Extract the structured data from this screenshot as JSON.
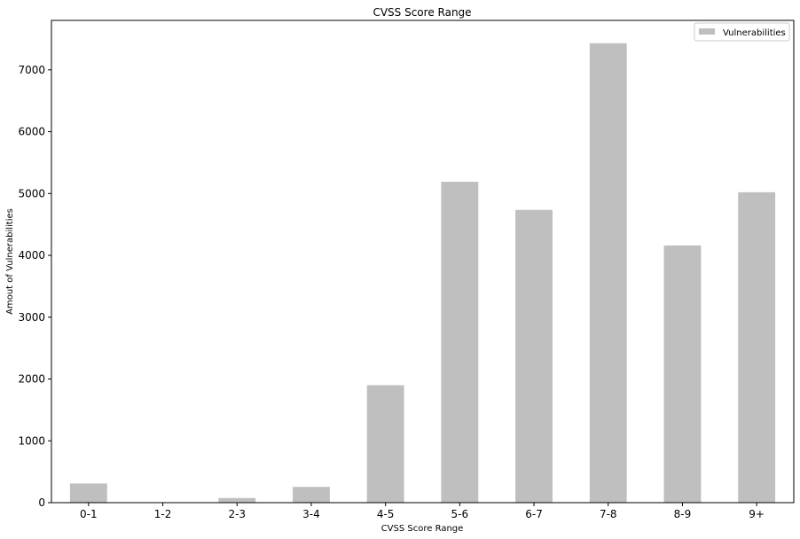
{
  "chart_data": {
    "type": "bar",
    "title": "CVSS Score Range",
    "xlabel": "CVSS Score Range",
    "ylabel": "Amout of Vulnerabilities",
    "categories": [
      "0-1",
      "1-2",
      "2-3",
      "3-4",
      "4-5",
      "5-6",
      "6-7",
      "7-8",
      "8-9",
      "9+"
    ],
    "series": [
      {
        "name": "Vulnerabilities",
        "values": [
          310,
          0,
          75,
          255,
          1900,
          5190,
          4735,
          7430,
          4160,
          5020
        ],
        "color": "#bfbfbf"
      }
    ],
    "ylim": [
      0,
      7800
    ],
    "yticks": [
      0,
      1000,
      2000,
      3000,
      4000,
      5000,
      6000,
      7000
    ],
    "grid": false,
    "legend_position": "top-right"
  }
}
